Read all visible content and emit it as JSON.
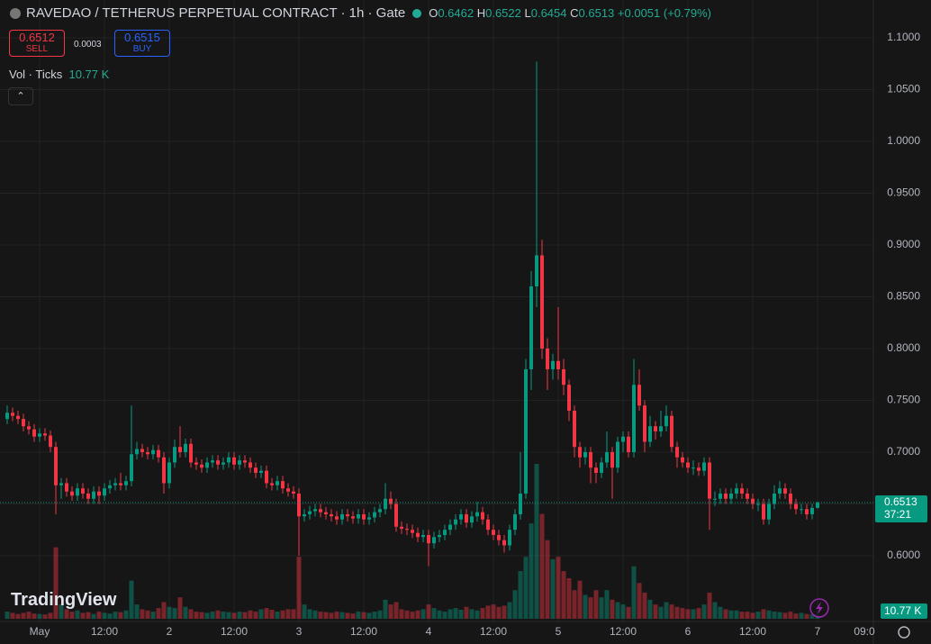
{
  "chart_data": {
    "type": "candlestick",
    "categories": [
      null,
      null,
      null,
      null,
      null,
      null,
      "May",
      null,
      null,
      null,
      null,
      null,
      null,
      null,
      null,
      null,
      null,
      null,
      "12:00",
      null,
      null,
      null,
      null,
      null,
      null,
      null,
      null,
      null,
      null,
      null,
      "2",
      null,
      null,
      null,
      null,
      null,
      null,
      null,
      null,
      null,
      null,
      null,
      "12:00",
      null,
      null,
      null,
      null,
      null,
      null,
      null,
      null,
      null,
      null,
      null,
      "3",
      null,
      null,
      null,
      null,
      null,
      null,
      null,
      null,
      null,
      null,
      null,
      "12:00",
      null,
      null,
      null,
      null,
      null,
      null,
      null,
      null,
      null,
      null,
      null,
      "4",
      null,
      null,
      null,
      null,
      null,
      null,
      null,
      null,
      null,
      null,
      null,
      "12:00",
      null,
      null,
      null,
      null,
      null,
      null,
      null,
      null,
      null,
      null,
      null,
      "5",
      null,
      null,
      null,
      null,
      null,
      null,
      null,
      null,
      null,
      null,
      null,
      "12:00",
      null,
      null,
      null,
      null,
      null,
      null,
      null,
      null,
      null,
      null,
      null,
      "6",
      null,
      null,
      null,
      null,
      null,
      null,
      null,
      null,
      null,
      null,
      null,
      "12:00",
      null,
      null,
      null,
      null,
      null,
      null,
      null,
      null,
      null,
      null,
      null,
      "7"
    ],
    "open": [
      0.732,
      0.738,
      0.735,
      0.732,
      0.725,
      0.722,
      0.715,
      0.718,
      0.716,
      0.705,
      0.668,
      0.67,
      0.662,
      0.658,
      0.665,
      0.66,
      0.655,
      0.662,
      0.658,
      0.665,
      0.668,
      0.67,
      0.668,
      0.672,
      0.698,
      0.703,
      0.7,
      0.698,
      0.702,
      0.695,
      0.67,
      0.69,
      0.705,
      0.7,
      0.708,
      0.69,
      0.688,
      0.685,
      0.69,
      0.692,
      0.688,
      0.69,
      0.695,
      0.688,
      0.692,
      0.69,
      0.685,
      0.68,
      0.682,
      0.67,
      0.668,
      0.672,
      0.665,
      0.662,
      0.66,
      0.638,
      0.64,
      0.643,
      0.645,
      0.642,
      0.64,
      0.638,
      0.635,
      0.64,
      0.638,
      0.636,
      0.64,
      0.635,
      0.637,
      0.642,
      0.645,
      0.655,
      0.65,
      0.628,
      0.626,
      0.625,
      0.622,
      0.618,
      0.62,
      0.612,
      0.618,
      0.62,
      0.625,
      0.63,
      0.635,
      0.64,
      0.632,
      0.638,
      0.642,
      0.635,
      0.625,
      0.62,
      0.615,
      0.61,
      0.625,
      0.64,
      0.66,
      0.78,
      0.86,
      0.89,
      0.8,
      0.78,
      0.788,
      0.78,
      0.765,
      0.74,
      0.705,
      0.695,
      0.7,
      0.685,
      0.68,
      0.69,
      0.7,
      0.685,
      0.71,
      0.715,
      0.7,
      0.765,
      0.745,
      0.71,
      0.725,
      0.72,
      0.725,
      0.735,
      0.705,
      0.695,
      0.69,
      0.685,
      0.685,
      0.682,
      0.69,
      0.655,
      0.655,
      0.66,
      0.655,
      0.66,
      0.665,
      0.66,
      0.655,
      0.65,
      0.65,
      0.635,
      0.65,
      0.66,
      0.665,
      0.66,
      0.65,
      0.645,
      0.645,
      0.64,
      0.6462
    ],
    "high": [
      0.745,
      0.743,
      0.74,
      0.737,
      0.73,
      0.727,
      0.723,
      0.723,
      0.721,
      0.71,
      0.675,
      0.675,
      0.667,
      0.67,
      0.67,
      0.665,
      0.667,
      0.667,
      0.67,
      0.673,
      0.675,
      0.68,
      0.677,
      0.745,
      0.71,
      0.708,
      0.705,
      0.707,
      0.707,
      0.7,
      0.695,
      0.712,
      0.725,
      0.713,
      0.713,
      0.695,
      0.693,
      0.695,
      0.697,
      0.697,
      0.695,
      0.7,
      0.7,
      0.697,
      0.697,
      0.695,
      0.69,
      0.687,
      0.687,
      0.675,
      0.677,
      0.677,
      0.67,
      0.667,
      0.665,
      0.645,
      0.648,
      0.65,
      0.65,
      0.647,
      0.645,
      0.643,
      0.645,
      0.645,
      0.643,
      0.645,
      0.645,
      0.642,
      0.647,
      0.65,
      0.67,
      0.662,
      0.655,
      0.633,
      0.631,
      0.63,
      0.627,
      0.625,
      0.625,
      0.623,
      0.625,
      0.63,
      0.635,
      0.64,
      0.645,
      0.645,
      0.643,
      0.652,
      0.647,
      0.64,
      0.63,
      0.625,
      0.62,
      0.63,
      0.645,
      0.7,
      0.79,
      0.875,
      1.077,
      0.905,
      0.81,
      0.795,
      0.84,
      0.79,
      0.77,
      0.745,
      0.71,
      0.705,
      0.705,
      0.69,
      0.695,
      0.72,
      0.705,
      0.715,
      0.72,
      0.72,
      0.79,
      0.78,
      0.75,
      0.735,
      0.73,
      0.74,
      0.745,
      0.74,
      0.71,
      0.7,
      0.695,
      0.692,
      0.69,
      0.695,
      0.695,
      0.662,
      0.665,
      0.665,
      0.665,
      0.67,
      0.67,
      0.665,
      0.66,
      0.655,
      0.655,
      0.655,
      0.668,
      0.672,
      0.67,
      0.665,
      0.655,
      0.65,
      0.65,
      0.65,
      0.6522
    ],
    "low": [
      0.727,
      0.73,
      0.727,
      0.72,
      0.717,
      0.71,
      0.71,
      0.711,
      0.7,
      0.64,
      0.655,
      0.657,
      0.653,
      0.653,
      0.655,
      0.65,
      0.65,
      0.65,
      0.653,
      0.66,
      0.663,
      0.663,
      0.663,
      0.667,
      0.693,
      0.695,
      0.693,
      0.693,
      0.69,
      0.66,
      0.665,
      0.685,
      0.695,
      0.695,
      0.685,
      0.683,
      0.68,
      0.68,
      0.685,
      0.683,
      0.683,
      0.685,
      0.683,
      0.683,
      0.685,
      0.68,
      0.675,
      0.675,
      0.665,
      0.663,
      0.663,
      0.66,
      0.657,
      0.655,
      0.6,
      0.633,
      0.635,
      0.638,
      0.637,
      0.635,
      0.633,
      0.63,
      0.63,
      0.633,
      0.631,
      0.631,
      0.63,
      0.63,
      0.632,
      0.637,
      0.64,
      0.645,
      0.623,
      0.621,
      0.62,
      0.617,
      0.613,
      0.613,
      0.59,
      0.607,
      0.613,
      0.615,
      0.62,
      0.625,
      0.63,
      0.627,
      0.627,
      0.633,
      0.63,
      0.62,
      0.615,
      0.61,
      0.603,
      0.605,
      0.62,
      0.635,
      0.655,
      0.76,
      0.84,
      0.79,
      0.76,
      0.77,
      0.77,
      0.755,
      0.73,
      0.695,
      0.685,
      0.688,
      0.67,
      0.67,
      0.675,
      0.685,
      0.655,
      0.68,
      0.7,
      0.695,
      0.695,
      0.74,
      0.7,
      0.705,
      0.712,
      0.715,
      0.72,
      0.7,
      0.685,
      0.685,
      0.68,
      0.678,
      0.677,
      0.677,
      0.625,
      0.648,
      0.65,
      0.65,
      0.65,
      0.655,
      0.655,
      0.65,
      0.645,
      0.643,
      0.63,
      0.63,
      0.645,
      0.655,
      0.655,
      0.645,
      0.64,
      0.64,
      0.635,
      0.635,
      0.6454
    ],
    "close": [
      0.738,
      0.735,
      0.732,
      0.725,
      0.722,
      0.715,
      0.718,
      0.716,
      0.705,
      0.668,
      0.67,
      0.662,
      0.658,
      0.665,
      0.66,
      0.655,
      0.662,
      0.658,
      0.665,
      0.668,
      0.67,
      0.668,
      0.672,
      0.698,
      0.703,
      0.7,
      0.698,
      0.702,
      0.695,
      0.67,
      0.69,
      0.705,
      0.7,
      0.708,
      0.69,
      0.688,
      0.685,
      0.69,
      0.692,
      0.688,
      0.69,
      0.695,
      0.688,
      0.692,
      0.69,
      0.685,
      0.68,
      0.682,
      0.67,
      0.668,
      0.672,
      0.665,
      0.662,
      0.66,
      0.638,
      0.64,
      0.643,
      0.645,
      0.642,
      0.64,
      0.638,
      0.635,
      0.64,
      0.638,
      0.636,
      0.64,
      0.635,
      0.637,
      0.642,
      0.645,
      0.655,
      0.65,
      0.628,
      0.626,
      0.625,
      0.622,
      0.618,
      0.62,
      0.612,
      0.618,
      0.62,
      0.625,
      0.63,
      0.635,
      0.64,
      0.632,
      0.638,
      0.642,
      0.635,
      0.625,
      0.62,
      0.615,
      0.61,
      0.625,
      0.64,
      0.66,
      0.78,
      0.86,
      0.89,
      0.8,
      0.78,
      0.788,
      0.78,
      0.765,
      0.74,
      0.705,
      0.695,
      0.7,
      0.685,
      0.68,
      0.69,
      0.7,
      0.685,
      0.71,
      0.715,
      0.7,
      0.765,
      0.745,
      0.71,
      0.725,
      0.72,
      0.725,
      0.735,
      0.705,
      0.695,
      0.69,
      0.685,
      0.685,
      0.682,
      0.69,
      0.655,
      0.655,
      0.66,
      0.655,
      0.66,
      0.665,
      0.66,
      0.655,
      0.65,
      0.65,
      0.635,
      0.65,
      0.66,
      0.665,
      0.66,
      0.65,
      0.645,
      0.645,
      0.64,
      0.6462,
      0.6513
    ],
    "volume": [
      30,
      25,
      20,
      25,
      30,
      22,
      20,
      18,
      25,
      300,
      60,
      40,
      30,
      35,
      25,
      28,
      20,
      30,
      25,
      22,
      30,
      28,
      35,
      160,
      60,
      40,
      35,
      30,
      45,
      70,
      50,
      45,
      90,
      50,
      40,
      30,
      28,
      25,
      30,
      35,
      30,
      28,
      25,
      30,
      28,
      35,
      30,
      40,
      45,
      38,
      30,
      35,
      40,
      40,
      260,
      60,
      40,
      35,
      30,
      28,
      25,
      30,
      28,
      25,
      22,
      30,
      28,
      25,
      30,
      35,
      80,
      60,
      70,
      40,
      35,
      30,
      35,
      40,
      60,
      45,
      35,
      30,
      40,
      45,
      38,
      50,
      40,
      35,
      45,
      55,
      60,
      50,
      55,
      70,
      120,
      200,
      260,
      400,
      650,
      440,
      330,
      250,
      260,
      200,
      170,
      120,
      160,
      100,
      90,
      120,
      90,
      120,
      80,
      70,
      60,
      50,
      220,
      150,
      110,
      80,
      60,
      50,
      70,
      60,
      50,
      45,
      40,
      40,
      45,
      60,
      110,
      70,
      50,
      40,
      35,
      35,
      30,
      30,
      25,
      30,
      40,
      35,
      30,
      28,
      25,
      30,
      22,
      25,
      20,
      18,
      10.77
    ],
    "up_color": "#089981",
    "down_color": "#f23645",
    "ylim": [
      0.5365,
      1.1365
    ],
    "yticks": [
      {
        "value": 0.6,
        "label": "0.6000"
      },
      {
        "value": 0.65,
        "label": "0.6500"
      },
      {
        "value": 0.7,
        "label": "0.7000"
      },
      {
        "value": 0.75,
        "label": "0.7500"
      },
      {
        "value": 0.8,
        "label": "0.8000"
      },
      {
        "value": 0.85,
        "label": "0.8500"
      },
      {
        "value": 0.9,
        "label": "0.9000"
      },
      {
        "value": 0.95,
        "label": "0.9500"
      },
      {
        "value": 1.0,
        "label": "1.0000"
      },
      {
        "value": 1.05,
        "label": "1.0500"
      },
      {
        "value": 1.1,
        "label": "1.1000"
      }
    ],
    "grid": true
  },
  "header": {
    "title": "RAVEDAO / TETHERUS PERPETUAL CONTRACT · 1h · Gate",
    "o_key": "O",
    "o": "0.6462",
    "h_key": "H",
    "h": "0.6522",
    "l_key": "L",
    "l": "0.6454",
    "c_key": "C",
    "c": "0.6513",
    "change": "+0.0051 (+0.79%)"
  },
  "trade": {
    "sell_price": "0.6512",
    "sell": "SELL",
    "spread": "0.0003",
    "buy_price": "0.6515",
    "buy": "BUY"
  },
  "volume_legend": {
    "label": "Vol · Ticks",
    "value": "10.77 K"
  },
  "price_label": "0.6513",
  "countdown": "37:21",
  "volume_label": "10.77 K",
  "logo": "TradingView",
  "time_axis_extra": "09:0"
}
